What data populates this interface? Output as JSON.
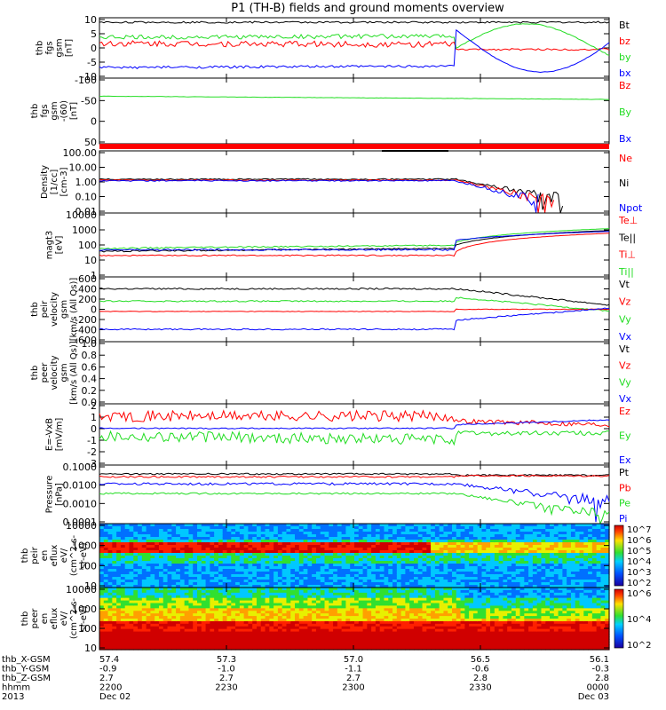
{
  "title": "P1 (TH-B) fields and ground moments overview",
  "colors": {
    "black": "#000000",
    "red": "#ff0000",
    "green": "#22dd22",
    "blue": "#0000ff"
  },
  "chart_data": [
    {
      "type": "line",
      "ylabels": [
        "thb",
        "fgs",
        "gsm",
        "[nT]"
      ],
      "yticks": [
        "10",
        "5",
        "0",
        "-5",
        "-10"
      ],
      "ylim": [
        -10,
        10
      ],
      "legend": [
        {
          "name": "Bt",
          "color": "black"
        },
        {
          "name": "bz",
          "color": "red"
        },
        {
          "name": "by",
          "color": "green"
        },
        {
          "name": "bx",
          "color": "blue"
        }
      ]
    },
    {
      "type": "line",
      "ylabels": [
        "thb",
        "fgs",
        "gsm",
        "-(60)",
        "[nT]"
      ],
      "yticks": [
        "-100",
        "-50",
        "0",
        "50"
      ],
      "ylim": [
        -130,
        70
      ],
      "legend": [
        {
          "name": "Bz",
          "color": "red"
        },
        {
          "name": "By",
          "color": "green"
        },
        {
          "name": "Bx",
          "color": "blue"
        }
      ]
    },
    {
      "type": "line",
      "ylabels": [
        "Density",
        "[1/cc]",
        "[cm-3]"
      ],
      "yticks": [
        "100.00",
        "10.00",
        "1.00",
        "0.10",
        "0.01"
      ],
      "ylim": [
        0.01,
        100
      ],
      "yscale": "log",
      "legend": [
        {
          "name": "Ne",
          "color": "red"
        },
        {
          "name": "Ni",
          "color": "black"
        },
        {
          "name": "Npot",
          "color": "blue"
        }
      ]
    },
    {
      "type": "line",
      "ylabels": [
        "magt3",
        "[eV]"
      ],
      "yticks": [
        "10000",
        "1000",
        "100",
        "10",
        "1"
      ],
      "ylim": [
        1,
        10000
      ],
      "yscale": "log",
      "legend": [
        {
          "name": "Te⊥",
          "color": "red"
        },
        {
          "name": "Te||",
          "color": "black"
        },
        {
          "name": "Ti⊥",
          "color": "red"
        },
        {
          "name": "Ti||",
          "color": "green"
        }
      ]
    },
    {
      "type": "line",
      "ylabels": [
        "thb",
        "peir",
        "velocity",
        "gsm",
        "[km/s (All Qs)]"
      ],
      "yticks": [
        "600",
        "400",
        "200",
        "0",
        "-200",
        "-400",
        "-600"
      ],
      "ylim": [
        -600,
        600
      ],
      "legend": [
        {
          "name": "Vt",
          "color": "black"
        },
        {
          "name": "Vz",
          "color": "red"
        },
        {
          "name": "Vy",
          "color": "green"
        },
        {
          "name": "Vx",
          "color": "blue"
        }
      ]
    },
    {
      "type": "line",
      "ylabels": [
        "thb",
        "peer",
        "velocity",
        "gsm",
        "[km/s (All Qs)]"
      ],
      "yticks": [
        "1.0",
        "0.8",
        "0.6",
        "0.4",
        "0.2",
        "0.0"
      ],
      "ylim": [
        0,
        1
      ],
      "legend": [
        {
          "name": "Vt",
          "color": "black"
        },
        {
          "name": "Vz",
          "color": "red"
        },
        {
          "name": "Vy",
          "color": "green"
        },
        {
          "name": "Vx",
          "color": "blue"
        }
      ]
    },
    {
      "type": "line",
      "ylabels": [
        "E=-VxB",
        "[mV/m]"
      ],
      "yticks": [
        "2",
        "1",
        "0",
        "-1",
        "-2",
        "-3"
      ],
      "ylim": [
        -3,
        2
      ],
      "legend": [
        {
          "name": "Ez",
          "color": "red"
        },
        {
          "name": "Ey",
          "color": "green"
        },
        {
          "name": "Ex",
          "color": "blue"
        }
      ]
    },
    {
      "type": "line",
      "ylabels": [
        "Pressure",
        "[nPa]"
      ],
      "yticks": [
        "0.1000",
        "0.0100",
        "0.0010",
        "0.0001"
      ],
      "ylim": [
        0.0001,
        0.1
      ],
      "yscale": "log",
      "legend": [
        {
          "name": "Pt",
          "color": "black"
        },
        {
          "name": "Pb",
          "color": "red"
        },
        {
          "name": "Pe",
          "color": "green"
        },
        {
          "name": "Pi",
          "color": "blue"
        }
      ]
    },
    {
      "type": "heatmap",
      "ylabels": [
        "thb",
        "peir",
        "en",
        "eflux",
        "eV/",
        "(cm^2-s-",
        "sr-eV)"
      ],
      "yticks": [
        "10000",
        "1000",
        "100",
        "10"
      ],
      "ylim": [
        5,
        20000
      ],
      "yscale": "log",
      "colorbar": [
        "10^7",
        "10^6",
        "10^5",
        "10^4",
        "10^3",
        "10^2"
      ]
    },
    {
      "type": "heatmap",
      "ylabels": [
        "thb",
        "peer",
        "en",
        "eflux",
        "eV/",
        "(cm^2-s-",
        "sr-eV)"
      ],
      "yticks": [
        "10000",
        "1000",
        "100",
        "10"
      ],
      "ylim": [
        5,
        20000
      ],
      "yscale": "log",
      "colorbar": [
        "10^6",
        "10^4",
        "10^2"
      ]
    }
  ],
  "xaxis": {
    "rows": [
      {
        "label": "thb_X-GSM",
        "values": [
          "57.4",
          "57.3",
          "57.0",
          "56.5",
          "56.1"
        ]
      },
      {
        "label": "thb_Y-GSM",
        "values": [
          "-0.9",
          "-1.0",
          "-1.1",
          "-0.6",
          "-0.3"
        ]
      },
      {
        "label": "thb_Z-GSM",
        "values": [
          "2.7",
          "2.7",
          "2.7",
          "2.8",
          "2.8"
        ]
      },
      {
        "label": "hhmm",
        "values": [
          "2200",
          "2230",
          "2300",
          "2330",
          "0000"
        ]
      },
      {
        "label": "2013",
        "values": [
          "Dec 02",
          "",
          "",
          "",
          "Dec 03"
        ]
      }
    ]
  }
}
